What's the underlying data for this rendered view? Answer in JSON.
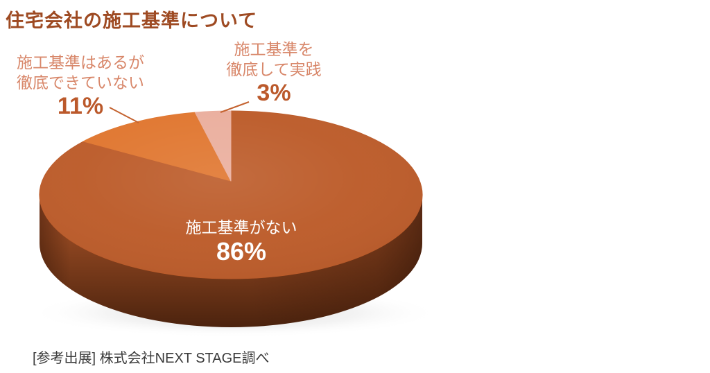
{
  "page": {
    "background": "#ffffff"
  },
  "header": {
    "title": "住宅会社の施工基準について",
    "title_color": "#9e4a22"
  },
  "chart_data": {
    "type": "pie",
    "style": "3d",
    "title": "住宅会社の施工基準について",
    "unit": "%",
    "start_angle_deg": 0,
    "clockwise": true,
    "legend": "none",
    "slices": [
      {
        "label": "施工基準がない",
        "value": 86,
        "display": "86%",
        "color": "#bc5b29",
        "label_position": "inside",
        "label_color": "#ffffff"
      },
      {
        "label": "施工基準はあるが徹底できていない",
        "value": 11,
        "display": "11%",
        "color": "#e0762f",
        "label_position": "outside-left",
        "label_color": "#d8876a"
      },
      {
        "label": "施工基準を徹底して実践",
        "value": 3,
        "display": "3%",
        "color": "#eaae9d",
        "label_position": "outside-top",
        "label_color": "#d8876a"
      }
    ],
    "accent_colors": {
      "percent_text": "#bb592b",
      "leader_line": "#c4622f",
      "pie_side_dark": "#4c230e"
    }
  },
  "labels": {
    "none": {
      "line1": "施工基準がない",
      "pct": "86%"
    },
    "partial": {
      "line1": "施工基準はあるが",
      "line2": "徹底できていない",
      "pct": "11%"
    },
    "thorough": {
      "line1": "施工基準を",
      "line2": "徹底して実践",
      "pct": "3%"
    }
  },
  "footer": {
    "note": "[参考出展] 株式会社NEXT STAGE調べ"
  }
}
